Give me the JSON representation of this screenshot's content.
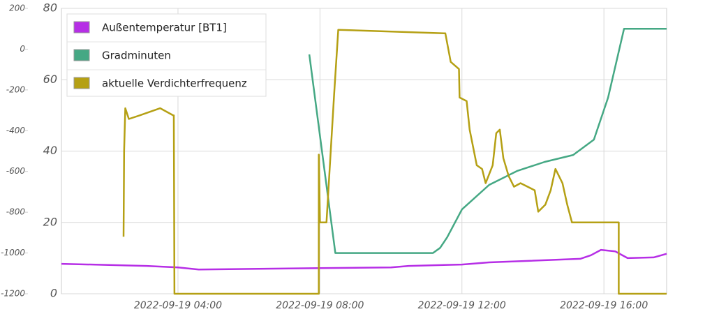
{
  "chart_data": {
    "type": "line",
    "x_format": "date-time",
    "xlim": [
      "2022-09-19 00:43",
      "2022-09-19 17:46"
    ],
    "xticks": [
      "2022-09-19 04:00",
      "2022-09-19 08:00",
      "2022-09-19 12:00",
      "2022-09-19 16:00"
    ],
    "ylim": [
      0,
      80
    ],
    "yticks": [
      0,
      20,
      40,
      60,
      80
    ],
    "y2lim": [
      -1200,
      200
    ],
    "y2ticks": [
      -1200,
      -1000,
      -800,
      -600,
      -400,
      -200,
      0,
      200
    ],
    "grid": true,
    "legend": "top-left",
    "series": [
      {
        "name": "Außentemperatur [BT1]",
        "color": "#b62ee6",
        "x": [
          "2022-09-19 00:43",
          "2022-09-19 03:07",
          "2022-09-19 04:00",
          "2022-09-19 04:35",
          "2022-09-19 08:00",
          "2022-09-19 10:00",
          "2022-09-19 10:30",
          "2022-09-19 12:00",
          "2022-09-19 12:46",
          "2022-09-19 15:20",
          "2022-09-19 15:38",
          "2022-09-19 15:55",
          "2022-09-19 16:19",
          "2022-09-19 16:40",
          "2022-09-19 17:24",
          "2022-09-19 17:46"
        ],
        "values": [
          8.4,
          7.8,
          7.4,
          6.8,
          7.2,
          7.4,
          7.8,
          8.2,
          8.8,
          9.8,
          10.8,
          12.3,
          11.9,
          10,
          10.2,
          11.2
        ]
      },
      {
        "name": "Gradminuten",
        "color": "#45a884",
        "axis": "y2",
        "x": [
          "2022-09-19 07:42",
          "2022-09-19 08:26",
          "2022-09-19 11:11",
          "2022-09-19 11:23",
          "2022-09-19 11:35",
          "2022-09-19 12:00",
          "2022-09-19 12:46",
          "2022-09-19 13:33",
          "2022-09-19 14:20",
          "2022-09-19 15:08",
          "2022-09-19 15:43",
          "2022-09-19 16:07",
          "2022-09-19 16:34",
          "2022-09-19 17:46"
        ],
        "values": [
          -26,
          -1000,
          -1000,
          -975,
          -923,
          -786,
          -666,
          -598,
          -553,
          -519,
          -444,
          -238,
          100,
          100
        ]
      },
      {
        "name": "aktuelle Verdichterfrequenz",
        "color": "#b5a014",
        "x": [
          "2022-09-19 02:28",
          "2022-09-19 02:29",
          "2022-09-19 02:31",
          "2022-09-19 02:37",
          "2022-09-19 02:55",
          "2022-09-19 03:30",
          "2022-09-19 03:52",
          "2022-09-19 03:53",
          "2022-09-19 03:54",
          "2022-09-19 07:58",
          "2022-09-19 07:58",
          "2022-09-19 08:00",
          "2022-09-19 08:11",
          "2022-09-19 08:24",
          "2022-09-19 08:31",
          "2022-09-19 11:32",
          "2022-09-19 11:41",
          "2022-09-19 11:55",
          "2022-09-19 11:56",
          "2022-09-19 12:08",
          "2022-09-19 12:13",
          "2022-09-19 12:25",
          "2022-09-19 12:34",
          "2022-09-19 12:40",
          "2022-09-19 12:52",
          "2022-09-19 12:58",
          "2022-09-19 13:04",
          "2022-09-19 13:10",
          "2022-09-19 13:19",
          "2022-09-19 13:28",
          "2022-09-19 13:39",
          "2022-09-19 14:03",
          "2022-09-19 14:09",
          "2022-09-19 14:21",
          "2022-09-19 14:30",
          "2022-09-19 14:38",
          "2022-09-19 14:50",
          "2022-09-19 14:58",
          "2022-09-19 15:06",
          "2022-09-19 16:25",
          "2022-09-19 16:25",
          "2022-09-19 17:46"
        ],
        "values": [
          16,
          40,
          52,
          49,
          50,
          52,
          50,
          50,
          0,
          0,
          39,
          20,
          20,
          56,
          74,
          73,
          65,
          63,
          55,
          54,
          46,
          36,
          35,
          31,
          36,
          45,
          46,
          38,
          33,
          30,
          31,
          29,
          23,
          25,
          29,
          35,
          31,
          25,
          20,
          20,
          0,
          0
        ]
      }
    ]
  }
}
